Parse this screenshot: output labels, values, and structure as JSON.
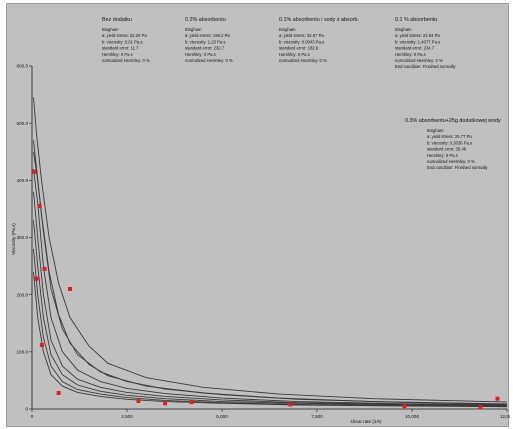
{
  "chart_data": {
    "type": "line",
    "xlabel": "shear rate (1/s)",
    "ylabel": "Viscosity (Pa.s)",
    "xlim": [
      0,
      12500
    ],
    "ylim": [
      0,
      600
    ],
    "x_ticks": [
      {
        "value": 0,
        "label": "0"
      },
      {
        "value": 2500,
        "label": "2,500"
      },
      {
        "value": 5000,
        "label": "5,000"
      },
      {
        "value": 7500,
        "label": "7,500"
      },
      {
        "value": 10000,
        "label": "10,000"
      },
      {
        "value": 12500,
        "label": "12,500"
      }
    ],
    "y_ticks": [
      {
        "value": 0,
        "label": "0"
      },
      {
        "value": 100,
        "label": "100.0"
      },
      {
        "value": 200,
        "label": "200.0"
      },
      {
        "value": 300,
        "label": "300.0"
      },
      {
        "value": 400,
        "label": "400.0"
      },
      {
        "value": 500,
        "label": "500.0"
      },
      {
        "value": 600,
        "label": "600.0"
      }
    ],
    "grid": false,
    "line_color": "#3a3a3a",
    "marker_color": "#e0201c",
    "curves": [
      [
        [
          40,
          545
        ],
        [
          120,
          480
        ],
        [
          250,
          400
        ],
        [
          450,
          300
        ],
        [
          700,
          220
        ],
        [
          1000,
          160
        ],
        [
          1500,
          110
        ],
        [
          2000,
          80
        ],
        [
          3000,
          55
        ],
        [
          4500,
          38
        ],
        [
          6500,
          26
        ],
        [
          9000,
          18
        ],
        [
          12500,
          12
        ]
      ],
      [
        [
          40,
          470
        ],
        [
          120,
          420
        ],
        [
          250,
          340
        ],
        [
          450,
          240
        ],
        [
          700,
          165
        ],
        [
          1000,
          115
        ],
        [
          1500,
          78
        ],
        [
          2000,
          58
        ],
        [
          3000,
          40
        ],
        [
          4500,
          28
        ],
        [
          6500,
          19
        ],
        [
          9000,
          13
        ],
        [
          12500,
          9
        ]
      ],
      [
        [
          40,
          450
        ],
        [
          150,
          400
        ],
        [
          300,
          310
        ],
        [
          500,
          210
        ],
        [
          800,
          140
        ],
        [
          1200,
          95
        ],
        [
          1800,
          65
        ],
        [
          2500,
          48
        ],
        [
          3500,
          35
        ],
        [
          5000,
          25
        ],
        [
          7000,
          17
        ],
        [
          10000,
          11
        ],
        [
          12500,
          8
        ]
      ],
      [
        [
          40,
          420
        ],
        [
          150,
          360
        ],
        [
          300,
          250
        ],
        [
          500,
          160
        ],
        [
          800,
          100
        ],
        [
          1200,
          68
        ],
        [
          1800,
          48
        ],
        [
          2500,
          36
        ],
        [
          3500,
          27
        ],
        [
          5000,
          19
        ],
        [
          7000,
          13
        ],
        [
          10000,
          9
        ],
        [
          12500,
          7
        ]
      ],
      [
        [
          40,
          380
        ],
        [
          150,
          300
        ],
        [
          300,
          200
        ],
        [
          500,
          120
        ],
        [
          800,
          75
        ],
        [
          1200,
          52
        ],
        [
          1800,
          38
        ],
        [
          2500,
          29
        ],
        [
          3500,
          22
        ],
        [
          5000,
          16
        ],
        [
          7000,
          11
        ],
        [
          10000,
          8
        ],
        [
          12500,
          6
        ]
      ],
      [
        [
          40,
          330
        ],
        [
          150,
          250
        ],
        [
          300,
          160
        ],
        [
          500,
          95
        ],
        [
          800,
          60
        ],
        [
          1200,
          42
        ],
        [
          1800,
          31
        ],
        [
          2500,
          24
        ],
        [
          3500,
          18
        ],
        [
          5000,
          13
        ],
        [
          7000,
          10
        ],
        [
          10000,
          7
        ],
        [
          12500,
          5
        ]
      ],
      [
        [
          40,
          280
        ],
        [
          150,
          200
        ],
        [
          300,
          125
        ],
        [
          500,
          75
        ],
        [
          800,
          48
        ],
        [
          1200,
          34
        ],
        [
          1800,
          26
        ],
        [
          2500,
          20
        ],
        [
          3500,
          15
        ],
        [
          5000,
          11
        ],
        [
          7000,
          8
        ],
        [
          10000,
          6
        ],
        [
          12500,
          4
        ]
      ],
      [
        [
          40,
          240
        ],
        [
          150,
          160
        ],
        [
          300,
          100
        ],
        [
          500,
          60
        ],
        [
          800,
          40
        ],
        [
          1200,
          29
        ],
        [
          1800,
          22
        ],
        [
          2500,
          17
        ],
        [
          3500,
          13
        ],
        [
          5000,
          10
        ],
        [
          7000,
          7
        ],
        [
          10000,
          5
        ],
        [
          12500,
          4
        ]
      ]
    ],
    "markers": [
      [
        60,
        415
      ],
      [
        200,
        355
      ],
      [
        120,
        228
      ],
      [
        330,
        245
      ],
      [
        260,
        112
      ],
      [
        1000,
        210
      ],
      [
        700,
        28
      ],
      [
        2800,
        14
      ],
      [
        3500,
        10
      ],
      [
        4200,
        12
      ],
      [
        6800,
        8
      ],
      [
        9800,
        5
      ],
      [
        11800,
        3
      ],
      [
        12250,
        18
      ]
    ]
  },
  "annotations": [
    {
      "title": "Bez dodatku",
      "lines": [
        "Bingham",
        "a: yield stress: 22.26 Pa",
        "b: viscosity: 0.01 Pa.s",
        "standard error: 11.7",
        "Hershley: 0 Pa.s",
        "normalized Hershley: 0 %"
      ]
    },
    {
      "title": "0.2% absorbentu",
      "lines": [
        "Bingham",
        "a: yield stress: 196.2 Pa",
        "b: viscosity: 1.23 Pa.s",
        "standard error: 232.7",
        "Hershley: 0 Pa.s",
        "normalized Hershley: 0 %"
      ]
    },
    {
      "title": "0.1% absorbentu i sody z absorb.",
      "lines": [
        "Bingham",
        "a: yield stress: 34.87 Pa",
        "b: viscosity: 0.0043 Pa.s",
        "standard error: 182.9",
        "Hershley: 0 Pa.s",
        "normalized Hershley: 0 %"
      ]
    },
    {
      "title": "0.1 % absorbentu",
      "lines": [
        "Bingham",
        "a: yield stress: 22.84 Pa",
        "b: viscosity: 1.4077 Pa.s",
        "standard error: 234.7",
        "Hershley: 0 Pa.s",
        "normalized Hershley: 0 %",
        "End condition: Finished normally"
      ]
    },
    {
      "title": "0.3% absorbentu+25g dodatkowej wody",
      "lines": [
        "Bingham",
        "a: yield stress: 25.77 Pa",
        "b: viscosity: 0.3036 Pa.s",
        "standard error: 35.46",
        "Hershley: 0 Pa.s",
        "normalized Hershley: 0 %",
        "End condition: Finished normally"
      ]
    }
  ]
}
